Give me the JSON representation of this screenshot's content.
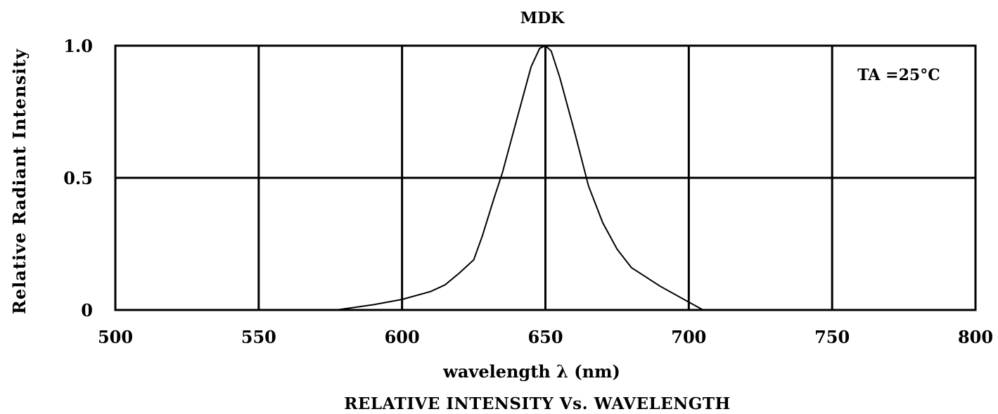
{
  "chart_data": {
    "type": "line",
    "title": "MDK",
    "xlabel": "wavelength λ (nm)",
    "ylabel": "Relative Radiant Intensity",
    "caption": "RELATIVE INTENSITY Vs. WAVELENGTH",
    "annotation": "TA =25°C",
    "xlim": [
      500,
      800
    ],
    "ylim": [
      0,
      1.0
    ],
    "x_ticks": [
      500,
      550,
      600,
      650,
      700,
      750,
      800
    ],
    "y_ticks": [
      {
        "value": 0,
        "label": "0"
      },
      {
        "value": 0.5,
        "label": "0.5"
      },
      {
        "value": 1.0,
        "label": "1.0"
      }
    ],
    "grid": true,
    "series": [
      {
        "x": [
          577,
          590,
          600,
          610,
          615,
          620,
          625,
          628,
          632,
          635,
          640,
          645,
          648,
          650,
          652,
          655,
          660,
          665,
          670,
          675,
          680,
          690,
          700,
          705
        ],
        "y": [
          0.0,
          0.02,
          0.04,
          0.07,
          0.095,
          0.14,
          0.19,
          0.28,
          0.42,
          0.52,
          0.72,
          0.92,
          0.99,
          1.0,
          0.98,
          0.88,
          0.68,
          0.47,
          0.33,
          0.23,
          0.16,
          0.09,
          0.03,
          0.0
        ]
      }
    ]
  }
}
